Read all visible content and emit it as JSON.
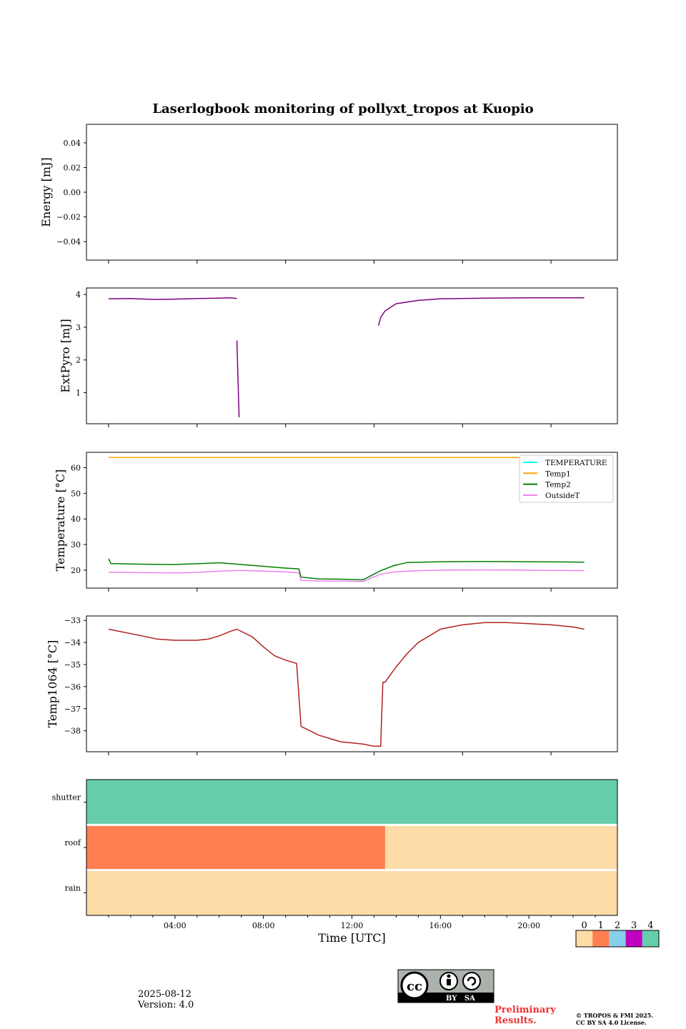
{
  "title": "Laserlogbook monitoring of pollyxt_tropos at Kuopio",
  "colors": {
    "extpyro": "#800080",
    "temperature": "#00ffff",
    "temp1": "#ffa500",
    "temp2": "#008000",
    "outsideT": "#ee82ee",
    "temp1064": "#b22222",
    "status_0": "#fddca8",
    "status_1": "#ff7f50",
    "status_2": "#87ceeb",
    "status_3": "#c000c0",
    "status_4": "#66cdaa"
  },
  "chart_data": [
    {
      "type": "line",
      "ylabel": "Energy [mJ]",
      "ylim": [
        -0.055,
        0.055
      ],
      "yticks": [
        "0.04",
        "0.02",
        "0.00",
        "−0.02",
        "−0.04"
      ],
      "ytick_values": [
        0.04,
        0.02,
        0.0,
        -0.02,
        -0.04
      ],
      "series": []
    },
    {
      "type": "line",
      "ylabel": "ExtPyro [mJ]",
      "ylim": [
        0.05,
        4.2
      ],
      "yticks": [
        "4",
        "3",
        "2",
        "1"
      ],
      "ytick_values": [
        4,
        3,
        2,
        1
      ],
      "series": [
        {
          "color_key": "extpyro",
          "x": [
            1.0,
            2.0,
            3.0,
            4.0,
            5.0,
            6.0,
            6.5,
            6.8
          ],
          "y": [
            3.87,
            3.88,
            3.85,
            3.86,
            3.88,
            3.89,
            3.9,
            3.88
          ]
        },
        {
          "color_key": "extpyro",
          "x": [
            6.8,
            6.9
          ],
          "y": [
            2.6,
            0.25
          ]
        },
        {
          "color_key": "extpyro",
          "x": [
            13.2,
            13.3,
            13.5,
            14.0,
            15.0,
            16.0,
            18.0,
            20.0,
            21.5,
            22.5
          ],
          "y": [
            3.05,
            3.3,
            3.5,
            3.72,
            3.82,
            3.87,
            3.89,
            3.9,
            3.9,
            3.9
          ]
        }
      ]
    },
    {
      "type": "line",
      "ylabel": "Temperature [°C]",
      "ylim": [
        13,
        66
      ],
      "yticks": [
        "60",
        "50",
        "40",
        "30",
        "20"
      ],
      "ytick_values": [
        60,
        50,
        40,
        30,
        20
      ],
      "legend": [
        "TEMPERATURE",
        "Temp1",
        "Temp2",
        "OutsideT"
      ],
      "legend_position": "upper-right",
      "series": [
        {
          "color_key": "temperature",
          "x": [],
          "y": []
        },
        {
          "color_key": "temp1",
          "x": [
            1.0,
            22.5
          ],
          "y": [
            64,
            64
          ]
        },
        {
          "color_key": "temp2",
          "x": [
            1.0,
            1.1,
            2.0,
            3.0,
            4.0,
            5.0,
            6.0,
            7.0,
            8.0,
            9.0,
            9.6,
            9.7,
            10.5,
            11.5,
            12.5,
            13.3,
            13.9,
            14.5,
            16.0,
            18.0,
            20.0,
            21.5,
            22.5
          ],
          "y": [
            24.5,
            22.6,
            22.4,
            22.3,
            22.2,
            22.5,
            22.9,
            22.2,
            21.5,
            20.8,
            20.5,
            17.3,
            16.6,
            16.5,
            16.2,
            19.8,
            21.8,
            23.0,
            23.3,
            23.4,
            23.3,
            23.2,
            23.1
          ]
        },
        {
          "color_key": "outsideT",
          "x": [
            1.0,
            2.0,
            3.0,
            4.0,
            5.0,
            6.0,
            7.0,
            8.0,
            9.0,
            9.6,
            9.7,
            10.5,
            11.5,
            12.5,
            13.3,
            14.0,
            15.0,
            16.0,
            18.0,
            20.0,
            21.5,
            22.5
          ],
          "y": [
            19.2,
            19.1,
            19.0,
            18.9,
            19.1,
            19.6,
            19.9,
            19.6,
            19.3,
            19.0,
            16.0,
            15.8,
            15.7,
            15.6,
            18.5,
            19.4,
            19.8,
            20.0,
            20.1,
            20.0,
            19.9,
            19.8
          ]
        }
      ]
    },
    {
      "type": "line",
      "ylabel": "Temp1064 [°C]",
      "ylim": [
        -38.95,
        -32.8
      ],
      "yticks": [
        "−33",
        "−34",
        "−35",
        "−36",
        "−37",
        "−38"
      ],
      "ytick_values": [
        -33,
        -34,
        -35,
        -36,
        -37,
        -38
      ],
      "series": [
        {
          "color_key": "temp1064",
          "x": [
            1.0,
            1.5,
            2.5,
            3.2,
            4.0,
            5.0,
            5.5,
            6.0,
            6.5,
            6.8,
            7.5,
            8.0,
            8.5,
            9.0,
            9.5,
            9.7,
            10.0,
            10.5,
            11.0,
            11.5,
            12.0,
            12.5,
            13.0,
            13.3,
            13.4,
            13.5,
            14.0,
            14.5,
            15.0,
            15.5,
            16.0,
            16.5,
            17.0,
            18.0,
            19.0,
            20.0,
            21.0,
            22.0,
            22.5
          ],
          "y": [
            -33.4,
            -33.5,
            -33.7,
            -33.85,
            -33.9,
            -33.9,
            -33.85,
            -33.7,
            -33.5,
            -33.4,
            -33.75,
            -34.2,
            -34.6,
            -34.8,
            -34.95,
            -37.8,
            -37.95,
            -38.2,
            -38.35,
            -38.5,
            -38.55,
            -38.6,
            -38.7,
            -38.7,
            -35.8,
            -35.8,
            -35.1,
            -34.5,
            -34.0,
            -33.7,
            -33.4,
            -33.3,
            -33.2,
            -33.1,
            -33.1,
            -33.15,
            -33.2,
            -33.3,
            -33.4
          ]
        }
      ]
    },
    {
      "type": "heatmap",
      "xlabel": "Time [UTC]",
      "xticks": [
        "04:00",
        "08:00",
        "12:00",
        "16:00",
        "20:00"
      ],
      "xtick_values": [
        4,
        8,
        12,
        16,
        20
      ],
      "xlim": [
        0,
        24
      ],
      "rows": [
        "shutter",
        "roof",
        "rain"
      ],
      "segments": [
        [
          {
            "start": 0,
            "end": 24,
            "value": 4
          }
        ],
        [
          {
            "start": 0,
            "end": 13.5,
            "value": 1
          },
          {
            "start": 13.5,
            "end": 24,
            "value": 0
          }
        ],
        [
          {
            "start": 0,
            "end": 24,
            "value": 0
          }
        ]
      ],
      "colorbar_labels": [
        "0",
        "1",
        "2",
        "3",
        "4"
      ]
    }
  ],
  "shared_xlim": [
    0,
    24
  ],
  "footer": {
    "date": "2025-08-12",
    "version": "Version: 4.0",
    "license_badge": "BY   SA",
    "preliminary_line1": "Preliminary",
    "preliminary_line2": "Results.",
    "copyright_line1": "© TROPOS & FMI 2025.",
    "copyright_line2": "CC BY SA 4.0 License."
  }
}
